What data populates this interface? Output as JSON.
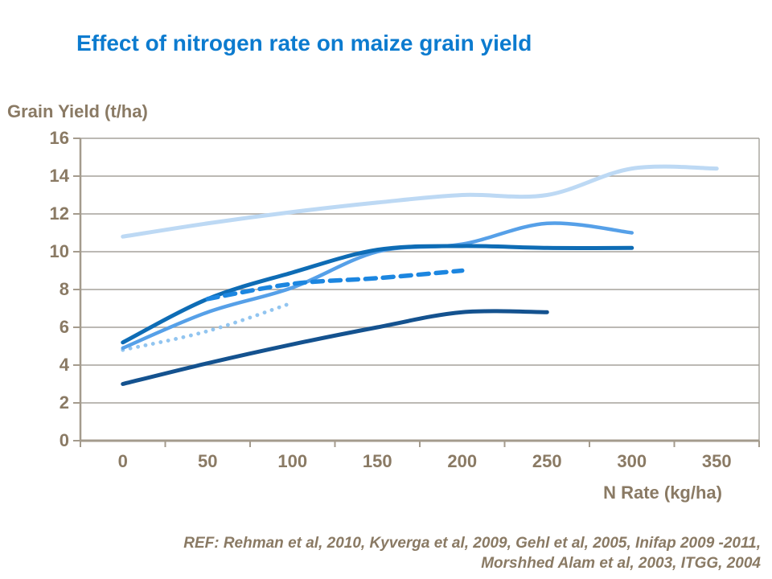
{
  "title": "Effect of nitrogen rate on maize grain yield",
  "reference": {
    "line1": "REF: Rehman et al, 2010, Kyverga et al, 2009, Gehl et al, 2005, Inifap 2009 -2011,",
    "line2": "Morshhed Alam et al, 2003, ITGG, 2004"
  },
  "colors": {
    "title_text": "#0C7BCF",
    "axis_text": "#8A7A64",
    "axis_line": "#A49B8D",
    "gridline": "#A6A29B"
  },
  "chart_data": {
    "type": "line",
    "title": "Effect of nitrogen rate on maize grain yield",
    "xlabel": "N Rate (kg/ha)",
    "ylabel": "Grain Yield (t/ha)",
    "categories": [
      0,
      50,
      100,
      150,
      200,
      250,
      300,
      350
    ],
    "ylim": [
      0,
      16
    ],
    "y_tick_step": 2,
    "grid": true,
    "legend_position": "none",
    "series": [
      {
        "name": "lightest-blue-line",
        "style": "solid",
        "color": "#BDD9F4",
        "width": 5,
        "values": [
          10.8,
          11.5,
          12.1,
          12.6,
          13.0,
          13.0,
          14.4,
          14.4
        ]
      },
      {
        "name": "dotted-light-blue-line",
        "style": "dotted",
        "color": "#92C5F0",
        "width": 4.8,
        "values": [
          4.8,
          5.8,
          7.3,
          null,
          null,
          null,
          null,
          null
        ]
      },
      {
        "name": "medium-blue-line",
        "style": "solid",
        "color": "#56A0E8",
        "width": 4.5,
        "values": [
          4.9,
          6.8,
          8.1,
          10.0,
          10.4,
          11.5,
          11.0,
          null
        ]
      },
      {
        "name": "dark-azure-line",
        "style": "solid",
        "color": "#0E6CB5",
        "width": 5,
        "values": [
          5.2,
          7.5,
          8.9,
          10.1,
          10.3,
          10.2,
          10.2,
          null
        ]
      },
      {
        "name": "navy-line",
        "style": "solid",
        "color": "#14528F",
        "width": 5,
        "values": [
          3.0,
          4.1,
          5.1,
          6.0,
          6.8,
          6.8,
          null,
          null
        ]
      },
      {
        "name": "dashed-bright-blue-line",
        "style": "dashed",
        "color": "#1C86E0",
        "width": 5.5,
        "values": [
          null,
          7.5,
          8.3,
          8.6,
          9.0,
          null,
          null,
          null
        ]
      }
    ]
  }
}
